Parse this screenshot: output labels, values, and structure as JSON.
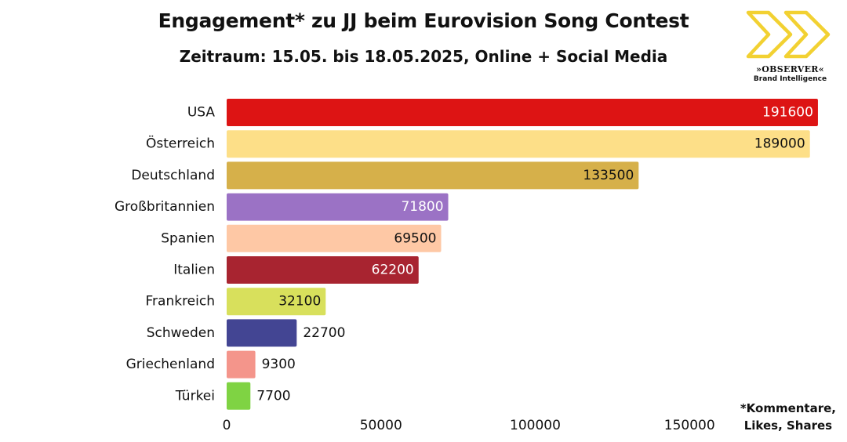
{
  "title": "Engagement* zu JJ beim Eurovision Song Contest",
  "subtitle": "Zeitraum: 15.05. bis 18.05.2025, Online + Social Media",
  "logo": {
    "name": "»OBSERVER«",
    "tagline": "Brand Intelligence",
    "color": "#f2d132"
  },
  "footnote": {
    "line1": "*Kommentare,",
    "line2": "Likes, Shares"
  },
  "chart_data": {
    "type": "bar",
    "orientation": "horizontal",
    "categories": [
      "USA",
      "Österreich",
      "Deutschland",
      "Großbritannien",
      "Spanien",
      "Italien",
      "Frankreich",
      "Schweden",
      "Griechenland",
      "Türkei"
    ],
    "values": [
      191600,
      189000,
      133500,
      71800,
      69500,
      62200,
      32100,
      22700,
      9300,
      7700
    ],
    "value_labels": [
      "191600",
      "189000",
      "133500",
      "71800",
      "69500",
      "62200",
      "32100",
      "22700",
      "9300",
      "7700"
    ],
    "colors": [
      "#dd1414",
      "#fddf88",
      "#d6b04a",
      "#9b72c5",
      "#fec8a5",
      "#a82430",
      "#d8e05c",
      "#434593",
      "#f4958b",
      "#7fd343"
    ],
    "label_colors": [
      "#ffffff",
      "#111111",
      "#111111",
      "#ffffff",
      "#111111",
      "#ffffff",
      "#111111",
      "#111111",
      "#111111",
      "#111111"
    ],
    "label_inside": [
      true,
      true,
      true,
      true,
      true,
      true,
      true,
      false,
      false,
      false
    ],
    "x_ticks": [
      0,
      50000,
      100000,
      150000
    ],
    "x_tick_labels": [
      "0",
      "50000",
      "100000",
      "150000"
    ],
    "xlim": [
      0,
      200000
    ],
    "grid": false,
    "legend": "none",
    "xlabel": "",
    "ylabel": ""
  }
}
